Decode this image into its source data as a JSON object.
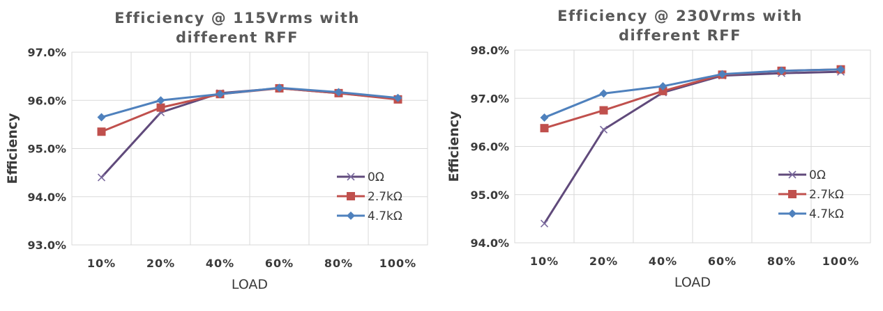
{
  "chart_data": [
    {
      "type": "line",
      "title_lines": [
        "Efficiency @ 115Vrms with",
        "different RFF"
      ],
      "xlabel": "LOAD",
      "ylabel": "Efficiency",
      "categories": [
        "10%",
        "20%",
        "40%",
        "60%",
        "80%",
        "100%"
      ],
      "ylim": [
        93.0,
        97.0
      ],
      "yticks": [
        "93.0%",
        "94.0%",
        "95.0%",
        "96.0%",
        "97.0%"
      ],
      "grid": true,
      "legend_position": "right",
      "series": [
        {
          "name": "0Ω",
          "color": "#604a7b",
          "marker": "x",
          "values": [
            94.4,
            95.75,
            96.15,
            96.25,
            96.15,
            96.03
          ]
        },
        {
          "name": "2.7kΩ",
          "color": "#c0504d",
          "marker": "square",
          "values": [
            95.35,
            95.85,
            96.13,
            96.25,
            96.15,
            96.02
          ]
        },
        {
          "name": "4.7kΩ",
          "color": "#4f81bd",
          "marker": "diamond",
          "values": [
            95.65,
            96.0,
            96.13,
            96.26,
            96.17,
            96.05
          ]
        }
      ]
    },
    {
      "type": "line",
      "title_lines": [
        "Efficiency @ 230Vrms with",
        "different RFF"
      ],
      "xlabel": "LOAD",
      "ylabel": "Efficiency",
      "categories": [
        "10%",
        "20%",
        "40%",
        "60%",
        "80%",
        "100%"
      ],
      "ylim": [
        94.0,
        98.0
      ],
      "yticks": [
        "94.0%",
        "95.0%",
        "96.0%",
        "97.0%",
        "98.0%"
      ],
      "grid": true,
      "legend_position": "right",
      "series": [
        {
          "name": "0Ω",
          "color": "#604a7b",
          "marker": "x",
          "values": [
            94.4,
            96.35,
            97.12,
            97.47,
            97.52,
            97.55
          ]
        },
        {
          "name": "2.7kΩ",
          "color": "#c0504d",
          "marker": "square",
          "values": [
            96.38,
            96.75,
            97.15,
            97.49,
            97.57,
            97.6
          ]
        },
        {
          "name": "4.7kΩ",
          "color": "#4f81bd",
          "marker": "diamond",
          "values": [
            96.6,
            97.1,
            97.25,
            97.5,
            97.57,
            97.6
          ]
        }
      ]
    }
  ]
}
